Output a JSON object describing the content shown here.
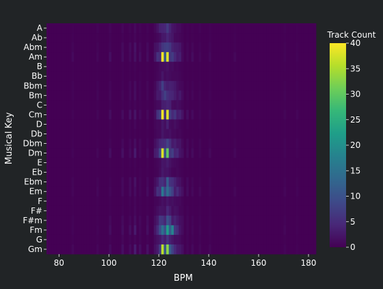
{
  "chart_data": {
    "type": "heatmap",
    "title": "",
    "xlabel": "BPM",
    "ylabel": "Musical Key",
    "x_tick_labels": [
      80,
      100,
      120,
      140,
      160,
      180
    ],
    "xlim": [
      75,
      183
    ],
    "bin_width": 1,
    "keys": [
      "A",
      "Ab",
      "Abm",
      "Am",
      "B",
      "Bb",
      "Bbm",
      "Bm",
      "C",
      "Cm",
      "D",
      "Db",
      "Dbm",
      "Dm",
      "E",
      "Eb",
      "Ebm",
      "Em",
      "F",
      "F#",
      "F#m",
      "Fm",
      "G",
      "Gm"
    ],
    "key_intensity": {
      "A": 0.35,
      "Ab": 0.25,
      "Abm": 0.55,
      "Am": 1.0,
      "B": 0.15,
      "Bb": 0.15,
      "Bbm": 0.4,
      "Bm": 0.55,
      "C": 0.25,
      "Cm": 1.0,
      "D": 0.2,
      "Db": 0.15,
      "Dbm": 0.55,
      "Dm": 0.95,
      "E": 0.15,
      "Eb": 0.15,
      "Ebm": 0.6,
      "Em": 0.8,
      "F": 0.2,
      "F#": 0.25,
      "F#m": 0.6,
      "Fm": 0.85,
      "G": 0.4,
      "Gm": 0.95
    },
    "bpm_profile": [
      {
        "bpm": 118,
        "weight": 0.15
      },
      {
        "bpm": 119,
        "weight": 0.35
      },
      {
        "bpm": 120,
        "weight": 0.55
      },
      {
        "bpm": 121,
        "weight": 0.95
      },
      {
        "bpm": 122,
        "weight": 0.7
      },
      {
        "bpm": 123,
        "weight": 1.0
      },
      {
        "bpm": 124,
        "weight": 0.75
      },
      {
        "bpm": 125,
        "weight": 0.5
      },
      {
        "bpm": 126,
        "weight": 0.4
      },
      {
        "bpm": 127,
        "weight": 0.3
      },
      {
        "bpm": 128,
        "weight": 0.25
      },
      {
        "bpm": 129,
        "weight": 0.12
      },
      {
        "bpm": 110,
        "weight": 0.18
      },
      {
        "bpm": 100,
        "weight": 0.08
      },
      {
        "bpm": 85,
        "weight": 0.05
      },
      {
        "bpm": 95,
        "weight": 0.05
      },
      {
        "bpm": 105,
        "weight": 0.1
      },
      {
        "bpm": 108,
        "weight": 0.1
      },
      {
        "bpm": 112,
        "weight": 0.08
      },
      {
        "bpm": 115,
        "weight": 0.1
      },
      {
        "bpm": 131,
        "weight": 0.08
      },
      {
        "bpm": 133,
        "weight": 0.06
      },
      {
        "bpm": 136,
        "weight": 0.05
      },
      {
        "bpm": 140,
        "weight": 0.05
      },
      {
        "bpm": 150,
        "weight": 0.04
      },
      {
        "bpm": 170,
        "weight": 0.04
      },
      {
        "bpm": 175,
        "weight": 0.03
      }
    ],
    "peak_cells": [
      {
        "key": "Am",
        "bpm": 121,
        "count": 40
      },
      {
        "key": "Am",
        "bpm": 123,
        "count": 38
      },
      {
        "key": "Cm",
        "bpm": 121,
        "count": 40
      },
      {
        "key": "Cm",
        "bpm": 123,
        "count": 38
      },
      {
        "key": "Dm",
        "bpm": 121,
        "count": 38
      },
      {
        "key": "Dm",
        "bpm": 123,
        "count": 30
      },
      {
        "key": "Gm",
        "bpm": 121,
        "count": 36
      },
      {
        "key": "Gm",
        "bpm": 123,
        "count": 33
      },
      {
        "key": "Fm",
        "bpm": 123,
        "count": 22
      },
      {
        "key": "Fm",
        "bpm": 125,
        "count": 18
      },
      {
        "key": "Em",
        "bpm": 121,
        "count": 16
      },
      {
        "key": "Em",
        "bpm": 123,
        "count": 14
      }
    ],
    "colorbar": {
      "title": "Track Count",
      "min": 0,
      "max": 40,
      "ticks": [
        0,
        5,
        10,
        15,
        20,
        25,
        30,
        35,
        40
      ],
      "colormap": "viridis"
    },
    "colors": {
      "background": "#212426",
      "viridis_stops": [
        "#440154",
        "#482878",
        "#3e4a89",
        "#31688e",
        "#26828e",
        "#1f9e89",
        "#35b779",
        "#6ece58",
        "#b5de2b",
        "#fde725"
      ]
    }
  }
}
